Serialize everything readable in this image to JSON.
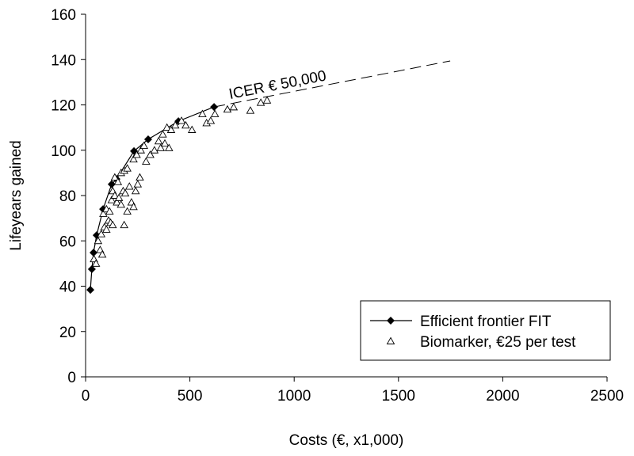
{
  "chart_data": {
    "type": "scatter",
    "x_label": "Costs (€, x1,000)",
    "y_label": "Lifeyears gained",
    "xlim": [
      0,
      2500
    ],
    "xticks": [
      0,
      500,
      1000,
      1500,
      2000,
      2500
    ],
    "ylim": [
      0,
      160
    ],
    "yticks": [
      0,
      20,
      40,
      60,
      80,
      100,
      120,
      140,
      160
    ],
    "grid": false,
    "legend": "lower right",
    "series": [
      {
        "name": "Efficient frontier FIT",
        "kind": "line",
        "marker": "diamond",
        "color": "#000000",
        "x": [
          23,
          30,
          38,
          53,
          84,
          125,
          148,
          232,
          300,
          445,
          616
        ],
        "values": [
          38.4,
          47.5,
          54.8,
          62.5,
          74,
          85,
          87.3,
          99.6,
          104.8,
          112.8,
          119.1
        ]
      },
      {
        "name": "Biomarker, €25 per test",
        "kind": "scatter",
        "marker": "triangle",
        "color": "#000000",
        "x": [
          40,
          50,
          70,
          80,
          60,
          75,
          90,
          100,
          110,
          85,
          100,
          115,
          125,
          130,
          140,
          150,
          160,
          170,
          180,
          190,
          140,
          155,
          170,
          185,
          200,
          210,
          220,
          230,
          240,
          250,
          260,
          230,
          245,
          265,
          280,
          290,
          310,
          330,
          350,
          370,
          390,
          360,
          380,
          400,
          410,
          430,
          460,
          480,
          510,
          560,
          580,
          600,
          620,
          680,
          710,
          790,
          840,
          870,
          120,
          130,
          185,
          200
        ],
        "values": [
          52,
          50,
          56,
          54,
          60,
          63,
          66,
          65,
          69,
          72,
          74,
          73,
          78,
          82,
          80,
          77,
          79,
          76,
          82,
          81,
          88,
          86,
          90,
          91,
          92,
          84,
          77,
          75,
          82,
          85,
          88,
          96,
          98,
          100,
          102,
          95,
          98,
          100,
          104,
          107,
          110,
          101,
          103,
          101,
          109,
          111,
          113,
          111,
          109,
          116,
          112,
          113,
          116,
          118,
          119,
          117.5,
          121,
          122,
          68,
          67,
          67,
          73
        ]
      }
    ],
    "reference_line": {
      "label": "ICER € 50,000",
      "x": [
        616,
        1748
      ],
      "y": [
        119.1,
        139.4
      ],
      "dash": true
    }
  }
}
